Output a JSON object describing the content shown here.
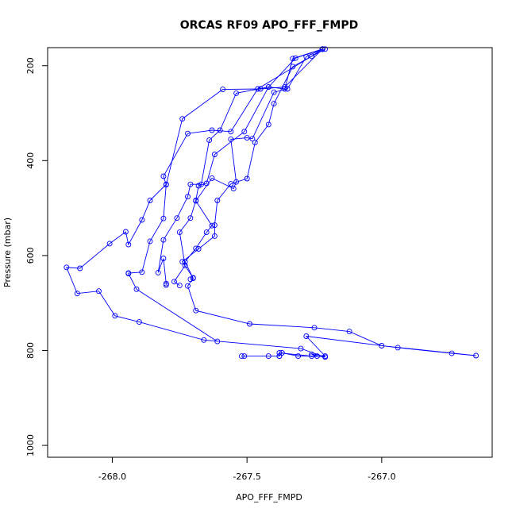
{
  "chart_data": {
    "type": "line",
    "title": "ORCAS RF09 APO_FFF_FMPD",
    "xlabel": "APO_FFF_FMPD",
    "ylabel": "Pressure (mbar)",
    "xlim": [
      -268.24,
      -266.59
    ],
    "ylim": [
      1025,
      162
    ],
    "y_reversed": true,
    "x_ticks": [
      -268.0,
      -267.5,
      -267.0
    ],
    "x_tick_labels": [
      "-268.0",
      "-267.5",
      "-267.0"
    ],
    "y_ticks": [
      200,
      400,
      600,
      800,
      1000
    ],
    "y_tick_labels": [
      "200",
      "400",
      "600",
      "800",
      "1000"
    ],
    "grid": false,
    "marker": "open-circle",
    "series": [
      {
        "color": "#0000ff",
        "x": [
          -267.52,
          -267.51,
          -267.42,
          -267.38,
          -267.37,
          -267.31,
          -267.24,
          -267.26,
          -267.21,
          -267.28,
          -266.94,
          -266.74,
          -266.65,
          -267.0,
          -267.12,
          -267.25,
          -267.49,
          -267.69,
          -267.72,
          -267.7,
          -267.73,
          -267.69,
          -267.65,
          -267.63,
          -267.69,
          -267.63,
          -267.55,
          -267.54,
          -267.56,
          -267.5,
          -267.48,
          -267.4,
          -267.35,
          -267.28,
          -267.22
        ],
        "y": [
          812,
          812,
          812,
          812,
          805,
          812,
          812,
          808,
          812,
          770,
          794,
          806,
          811,
          790,
          760,
          752,
          744,
          716,
          664,
          648,
          613,
          585,
          551,
          537,
          485,
          437,
          459,
          445,
          355,
          352,
          354,
          256,
          249,
          181,
          165
        ]
      },
      {
        "color": "#0000ff",
        "x": [
          -267.38,
          -267.38,
          -267.26,
          -267.21,
          -267.3,
          -267.66,
          -267.9,
          -267.99,
          -268.05,
          -268.13,
          -268.17,
          -268.12,
          -268.01,
          -267.95,
          -267.94,
          -267.89,
          -267.86,
          -267.8,
          -267.81,
          -267.72,
          -267.63,
          -267.56,
          -267.46,
          -267.26,
          -267.22
        ],
        "y": [
          812,
          805,
          812,
          814,
          796,
          778,
          740,
          727,
          675,
          680,
          625,
          627,
          575,
          550,
          577,
          525,
          484,
          450,
          433,
          343,
          336,
          339,
          249,
          180,
          165
        ]
      },
      {
        "color": "#0000ff",
        "x": [
          -267.61,
          -267.91,
          -267.94,
          -267.94,
          -267.89,
          -267.86,
          -267.81,
          -267.8,
          -267.74,
          -267.59,
          -267.45,
          -267.36,
          -267.22
        ],
        "y": [
          781,
          671,
          638,
          637,
          635,
          570,
          522,
          451,
          312,
          250,
          249,
          245,
          165
        ]
      },
      {
        "color": "#0000ff",
        "x": [
          -267.8,
          -267.8,
          -267.81,
          -267.83,
          -267.81,
          -267.76,
          -267.72,
          -267.71,
          -267.67,
          -267.64,
          -267.6,
          -267.54,
          -267.42,
          -267.36,
          -267.33,
          -267.22
        ],
        "y": [
          662,
          659,
          606,
          636,
          567,
          521,
          476,
          450,
          450,
          357,
          336,
          258,
          245,
          249,
          185,
          165
        ]
      },
      {
        "color": "#0000ff",
        "x": [
          -267.75,
          -267.77,
          -267.73,
          -267.75,
          -267.71,
          -267.69,
          -267.68,
          -267.65,
          -267.62,
          -267.51,
          -267.42,
          -267.32,
          -267.22
        ],
        "y": [
          663,
          655,
          621,
          551,
          521,
          484,
          453,
          448,
          387,
          339,
          245,
          184,
          165
        ]
      },
      {
        "color": "#0000ff",
        "x": [
          -267.71,
          -267.7,
          -267.74,
          -267.68,
          -267.62,
          -267.62,
          -267.61,
          -267.56,
          -267.5,
          -267.47,
          -267.42,
          -267.4,
          -267.33,
          -267.21
        ],
        "y": [
          650,
          647,
          613,
          586,
          559,
          536,
          484,
          449,
          438,
          362,
          324,
          280,
          202,
          165
        ]
      }
    ]
  }
}
